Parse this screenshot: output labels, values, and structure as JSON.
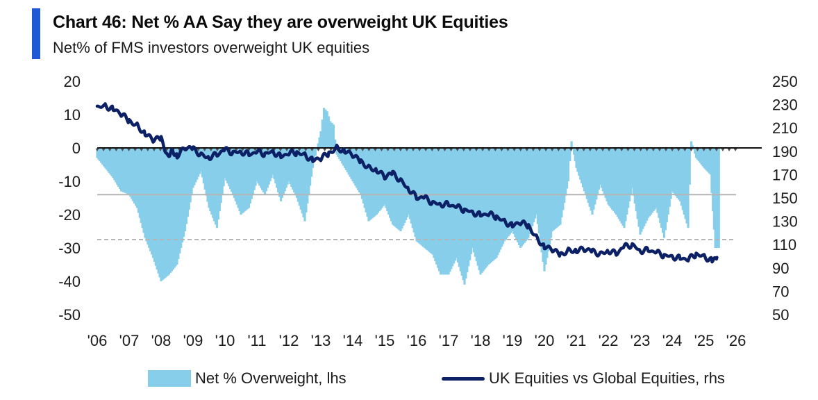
{
  "chart_data": {
    "type": "bar+line",
    "title": "Chart 46: Net % AA Say they are overweight UK Equities",
    "subtitle": "Net% of FMS investors overweight UK equities",
    "x_tick_labels": [
      "'06",
      "'07",
      "'08",
      "'09",
      "'10",
      "'11",
      "'12",
      "'13",
      "'14",
      "'15",
      "'16",
      "'17",
      "'18",
      "'19",
      "'20",
      "'21",
      "'22",
      "'23",
      "'24",
      "'25",
      "'26"
    ],
    "x_range_years": [
      2006,
      2026
    ],
    "left_axis": {
      "ticks": [
        20,
        10,
        0,
        -10,
        -20,
        -30,
        -40,
        -50
      ],
      "ylim": [
        -50,
        20
      ]
    },
    "right_axis": {
      "ticks": [
        250,
        230,
        210,
        190,
        170,
        150,
        130,
        110,
        90,
        70,
        50
      ],
      "ylim": [
        50,
        250
      ]
    },
    "reference_lines_lhs": {
      "mean": -14,
      "minus_one_std": -27.5
    },
    "series": [
      {
        "name": "Net % Overweight, lhs",
        "axis": "left",
        "kind": "bar",
        "color": "#87ceeb",
        "x": [
          2006.0,
          2006.25,
          2006.5,
          2006.75,
          2007.0,
          2007.25,
          2007.5,
          2007.75,
          2008.0,
          2008.25,
          2008.5,
          2008.75,
          2009.0,
          2009.25,
          2009.5,
          2009.75,
          2010.0,
          2010.25,
          2010.5,
          2010.75,
          2011.0,
          2011.25,
          2011.5,
          2011.75,
          2012.0,
          2012.25,
          2012.5,
          2012.75,
          2013.0,
          2013.1,
          2013.2,
          2013.3,
          2013.4,
          2013.5,
          2013.75,
          2014.0,
          2014.25,
          2014.5,
          2014.75,
          2015.0,
          2015.25,
          2015.5,
          2015.75,
          2016.0,
          2016.25,
          2016.5,
          2016.75,
          2017.0,
          2017.25,
          2017.5,
          2017.75,
          2018.0,
          2018.25,
          2018.5,
          2018.75,
          2019.0,
          2019.25,
          2019.5,
          2019.75,
          2020.0,
          2020.25,
          2020.5,
          2020.75,
          2020.85,
          2021.0,
          2021.25,
          2021.5,
          2021.75,
          2022.0,
          2022.25,
          2022.5,
          2022.75,
          2023.0,
          2023.25,
          2023.5,
          2023.75,
          2024.0,
          2024.25,
          2024.5,
          2024.6,
          2024.75,
          2025.0,
          2025.2,
          2025.35
        ],
        "values": [
          -3,
          -6,
          -9,
          -13,
          -14,
          -18,
          -27,
          -33,
          -40,
          -38,
          -35,
          -25,
          -12,
          -7,
          -18,
          -24,
          -9,
          -14,
          -20,
          -18,
          -10,
          -14,
          -8,
          -16,
          -10,
          -15,
          -22,
          -6,
          5,
          12,
          11,
          8,
          7,
          -2,
          -6,
          -10,
          -14,
          -22,
          -20,
          -17,
          -23,
          -25,
          -20,
          -28,
          -30,
          -32,
          -38,
          -38,
          -33,
          -41,
          -30,
          -38,
          -35,
          -33,
          -28,
          -25,
          -30,
          -27,
          -20,
          -37,
          -25,
          -23,
          -10,
          2,
          -6,
          -13,
          -20,
          -11,
          -17,
          -20,
          -24,
          -12,
          -26,
          -21,
          -18,
          -27,
          -13,
          -16,
          -24,
          2,
          -3,
          -6,
          -8,
          -30
        ]
      },
      {
        "name": "UK Equities vs Global Equities, rhs",
        "axis": "right",
        "kind": "line",
        "color": "#0c2065",
        "x": [
          2006.0,
          2006.25,
          2006.5,
          2006.75,
          2007.0,
          2007.25,
          2007.5,
          2007.75,
          2008.0,
          2008.2,
          2008.35,
          2008.5,
          2008.75,
          2009.0,
          2009.25,
          2009.5,
          2009.75,
          2010.0,
          2010.25,
          2010.5,
          2010.75,
          2011.0,
          2011.25,
          2011.5,
          2011.75,
          2012.0,
          2012.25,
          2012.5,
          2012.75,
          2013.0,
          2013.25,
          2013.5,
          2013.75,
          2014.0,
          2014.25,
          2014.5,
          2014.75,
          2015.0,
          2015.25,
          2015.5,
          2015.75,
          2016.0,
          2016.25,
          2016.5,
          2016.75,
          2017.0,
          2017.25,
          2017.5,
          2017.75,
          2018.0,
          2018.25,
          2018.5,
          2018.75,
          2019.0,
          2019.25,
          2019.5,
          2019.75,
          2020.0,
          2020.25,
          2020.5,
          2020.75,
          2021.0,
          2021.25,
          2021.5,
          2021.75,
          2022.0,
          2022.25,
          2022.5,
          2022.75,
          2023.0,
          2023.25,
          2023.5,
          2023.75,
          2024.0,
          2024.25,
          2024.5,
          2024.75,
          2025.0,
          2025.25,
          2025.4
        ],
        "values": [
          228,
          229,
          226,
          222,
          216,
          212,
          205,
          200,
          201,
          186,
          190,
          186,
          193,
          192,
          187,
          185,
          187,
          191,
          189,
          190,
          187,
          189,
          188,
          190,
          185,
          188,
          189,
          187,
          182,
          184,
          188,
          193,
          190,
          187,
          181,
          176,
          174,
          168,
          171,
          165,
          158,
          150,
          150,
          146,
          145,
          144,
          142,
          140,
          138,
          135,
          136,
          134,
          130,
          126,
          129,
          126,
          116,
          108,
          106,
          101,
          105,
          105,
          106,
          104,
          102,
          105,
          102,
          108,
          110,
          105,
          105,
          103,
          101,
          100,
          98,
          97,
          102,
          100,
          96,
          99
        ]
      }
    ],
    "legend": [
      {
        "label": "Net % Overweight, lhs",
        "kind": "bar"
      },
      {
        "label": "UK Equities vs Global Equities, rhs",
        "kind": "line"
      }
    ]
  }
}
